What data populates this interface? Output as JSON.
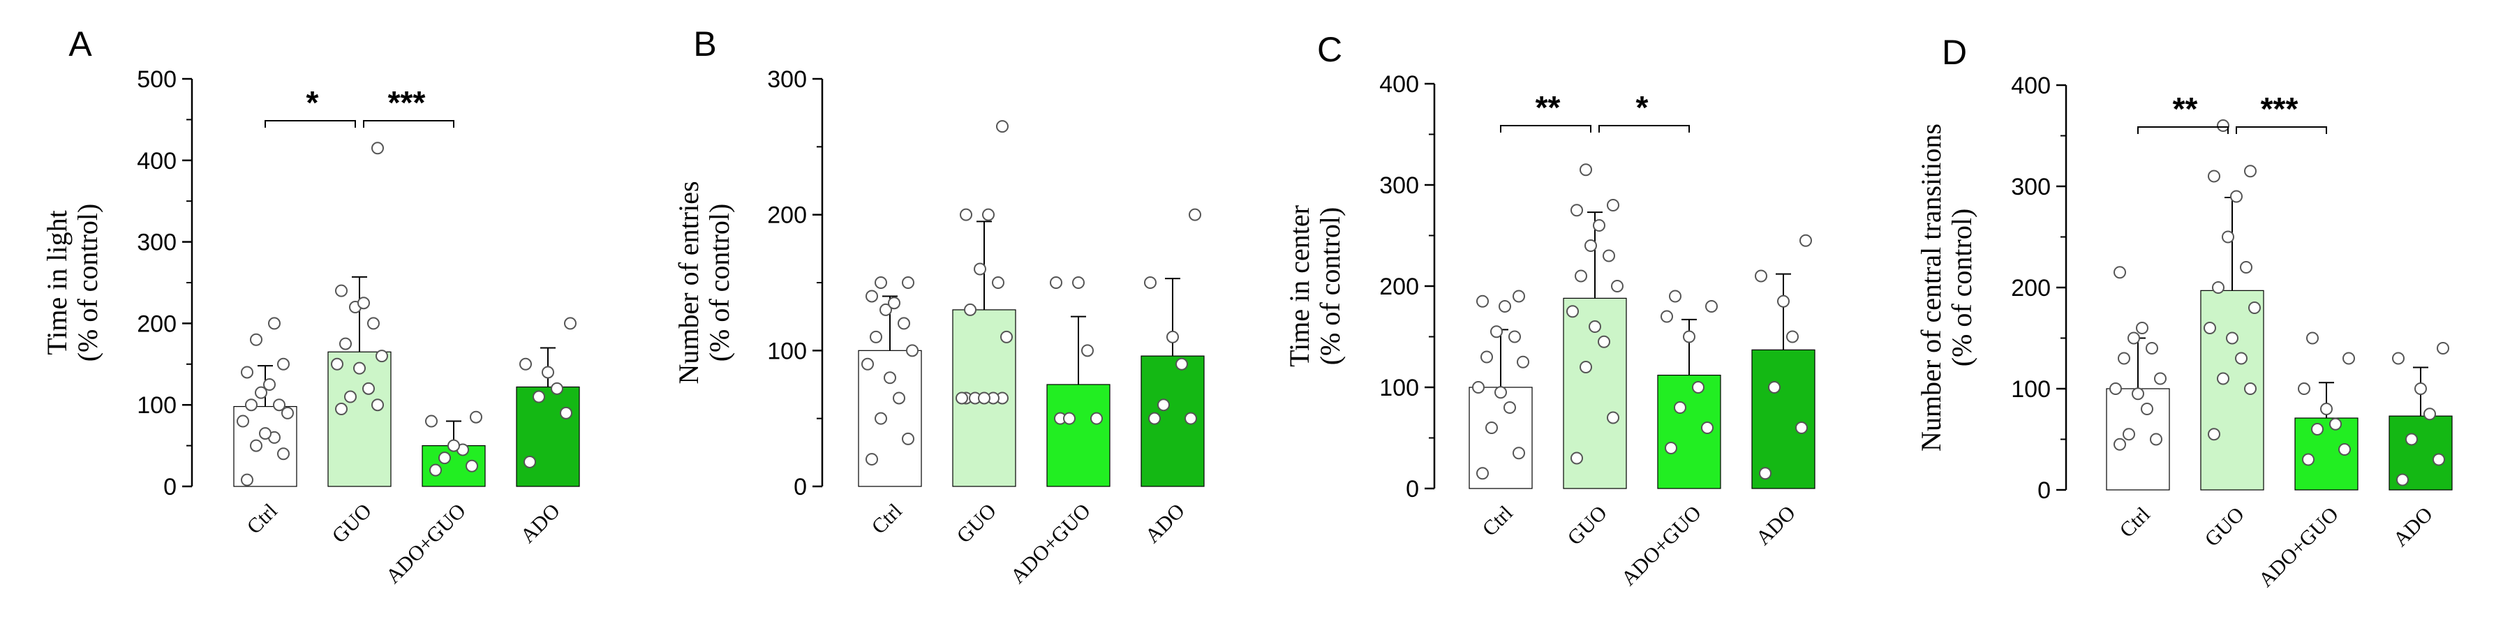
{
  "colors": {
    "ctrl": "#ffffff",
    "guo": "#ccf5c8",
    "ado_guo": "#22ee22",
    "ado": "#14b814",
    "stroke": "#000000",
    "point_edge": "#555555"
  },
  "chart_data": [
    {
      "panel": "A",
      "type": "bar",
      "title": "",
      "ylabel": [
        "Time in light",
        "(% of control)"
      ],
      "ylim": [
        0,
        500
      ],
      "yticks": [
        0,
        100,
        200,
        300,
        400,
        500
      ],
      "categories": [
        "Ctrl",
        "GUO",
        "ADO+GUO",
        "ADO"
      ],
      "values": [
        98,
        165,
        50,
        122
      ],
      "sd": [
        50,
        92,
        30,
        48
      ],
      "points": [
        [
          8,
          40,
          50,
          60,
          65,
          80,
          90,
          100,
          100,
          115,
          125,
          140,
          150,
          180,
          200
        ],
        [
          95,
          100,
          110,
          120,
          145,
          150,
          160,
          175,
          200,
          220,
          225,
          240,
          415
        ],
        [
          20,
          25,
          35,
          45,
          50,
          80,
          85
        ],
        [
          30,
          90,
          110,
          120,
          140,
          150,
          200
        ]
      ],
      "significance": [
        {
          "pair": [
            0,
            1
          ],
          "label": "*"
        },
        {
          "pair": [
            1,
            2
          ],
          "label": "***"
        }
      ]
    },
    {
      "panel": "B",
      "type": "bar",
      "title": "",
      "ylabel": [
        "Number of entries",
        "(% of control)"
      ],
      "ylim": [
        0,
        300
      ],
      "yticks": [
        0,
        100,
        200,
        300
      ],
      "categories": [
        "Ctrl",
        "GUO",
        "ADO+GUO",
        "ADO"
      ],
      "values": [
        100,
        130,
        75,
        96
      ],
      "sd": [
        40,
        65,
        50,
        57
      ],
      "points": [
        [
          20,
          35,
          50,
          65,
          80,
          90,
          100,
          110,
          120,
          130,
          135,
          140,
          150,
          150
        ],
        [
          65,
          65,
          65,
          65,
          65,
          65,
          110,
          130,
          150,
          160,
          200,
          200,
          265
        ],
        [
          50,
          50,
          50,
          100,
          150,
          150
        ],
        [
          50,
          50,
          60,
          90,
          110,
          150,
          200
        ]
      ],
      "significance": []
    },
    {
      "panel": "C",
      "type": "bar",
      "title": "",
      "ylabel": [
        "Time in center",
        "(% of control)"
      ],
      "ylim": [
        0,
        400
      ],
      "yticks": [
        0,
        100,
        200,
        300,
        400
      ],
      "categories": [
        "Ctrl",
        "GUO",
        "ADO+GUO",
        "ADO"
      ],
      "values": [
        100,
        188,
        112,
        137
      ],
      "sd": [
        57,
        85,
        55,
        75
      ],
      "points": [
        [
          15,
          35,
          60,
          80,
          95,
          100,
          125,
          130,
          150,
          155,
          180,
          185,
          190
        ],
        [
          30,
          70,
          120,
          145,
          160,
          175,
          200,
          210,
          230,
          240,
          260,
          275,
          280,
          315
        ],
        [
          40,
          60,
          80,
          100,
          150,
          170,
          180,
          190
        ],
        [
          15,
          60,
          100,
          150,
          185,
          210,
          245
        ]
      ],
      "significance": [
        {
          "pair": [
            0,
            1
          ],
          "label": "**"
        },
        {
          "pair": [
            1,
            2
          ],
          "label": "*"
        }
      ]
    },
    {
      "panel": "D",
      "type": "bar",
      "title": "",
      "ylabel": [
        "Number of central transitions",
        "(% of control)"
      ],
      "ylim": [
        0,
        400
      ],
      "yticks": [
        0,
        100,
        200,
        300,
        400
      ],
      "categories": [
        "Ctrl",
        "GUO",
        "ADO+GUO",
        "ADO"
      ],
      "values": [
        100,
        197,
        71,
        73
      ],
      "sd": [
        50,
        92,
        35,
        48
      ],
      "points": [
        [
          45,
          50,
          55,
          80,
          95,
          100,
          110,
          130,
          140,
          150,
          160,
          215
        ],
        [
          55,
          100,
          110,
          130,
          150,
          160,
          180,
          200,
          220,
          250,
          290,
          310,
          315,
          360
        ],
        [
          30,
          40,
          60,
          65,
          80,
          100,
          130,
          150
        ],
        [
          10,
          30,
          50,
          75,
          100,
          130,
          140
        ]
      ],
      "significance": [
        {
          "pair": [
            0,
            1
          ],
          "label": "**"
        },
        {
          "pair": [
            1,
            2
          ],
          "label": "***"
        }
      ]
    }
  ]
}
